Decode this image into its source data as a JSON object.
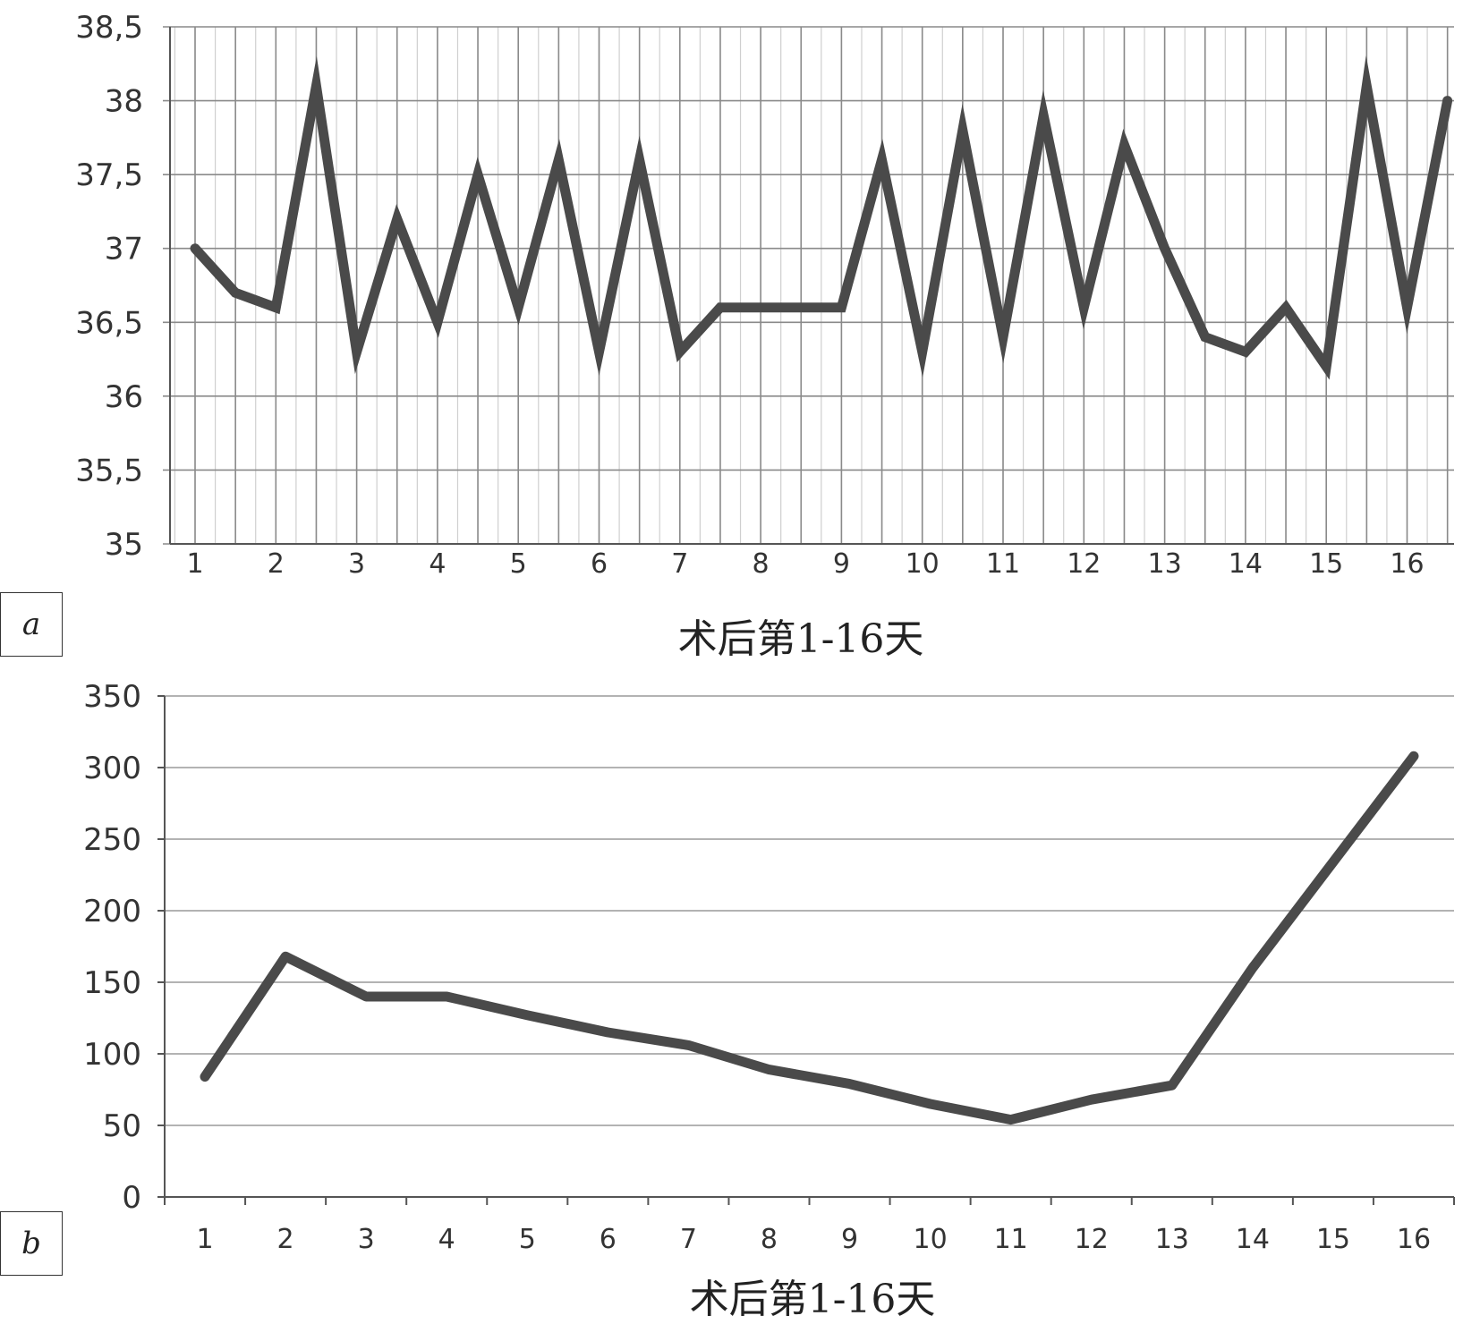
{
  "chart_data": [
    {
      "panel": "a",
      "type": "line",
      "xlabel": "术后第1-16天",
      "ylabel": "",
      "ylim": [
        35,
        38.5
      ],
      "yticks": [
        "35",
        "35,5",
        "36",
        "36,5",
        "37",
        "37,5",
        "38",
        "38,5"
      ],
      "xtick_labels": [
        "1",
        "2",
        "3",
        "4",
        "5",
        "6",
        "7",
        "8",
        "9",
        "10",
        "11",
        "12",
        "13",
        "14",
        "15",
        "16"
      ],
      "grid": "major and minor vertical, horizontal major",
      "line_color": "#4a4a4a",
      "series": [
        {
          "x": [
            1,
            1.5,
            2,
            2.5,
            3,
            3.5,
            4,
            4.5,
            5,
            5.5,
            6,
            6.5,
            7,
            7.5,
            8,
            8.5,
            9,
            9.5,
            10,
            10.5,
            11,
            11.5,
            12,
            12.5,
            13,
            13.5,
            14,
            14.5,
            15,
            15.5,
            16,
            16.5
          ],
          "values": [
            37.0,
            36.7,
            36.6,
            38.1,
            36.3,
            37.2,
            36.5,
            37.5,
            36.6,
            37.6,
            36.3,
            37.6,
            36.3,
            36.6,
            36.6,
            36.6,
            36.6,
            37.6,
            36.3,
            37.8,
            36.4,
            37.9,
            36.6,
            37.7,
            37.0,
            36.4,
            36.3,
            36.6,
            36.2,
            38.1,
            36.6,
            38.0
          ]
        }
      ]
    },
    {
      "panel": "b",
      "type": "line",
      "xlabel": "术后第1-16天",
      "ylabel": "",
      "ylim": [
        0,
        350
      ],
      "yticks": [
        "0",
        "50",
        "100",
        "150",
        "200",
        "250",
        "300",
        "350"
      ],
      "categories": [
        "1",
        "2",
        "3",
        "4",
        "5",
        "6",
        "7",
        "8",
        "9",
        "10",
        "11",
        "12",
        "13",
        "14",
        "15",
        "16"
      ],
      "grid": "horizontal",
      "line_color": "#4a4a4a",
      "series": [
        {
          "values": [
            84,
            168,
            140,
            140,
            127,
            115,
            106,
            89,
            79,
            65,
            54,
            68,
            78,
            160,
            234,
            308
          ]
        }
      ]
    }
  ]
}
